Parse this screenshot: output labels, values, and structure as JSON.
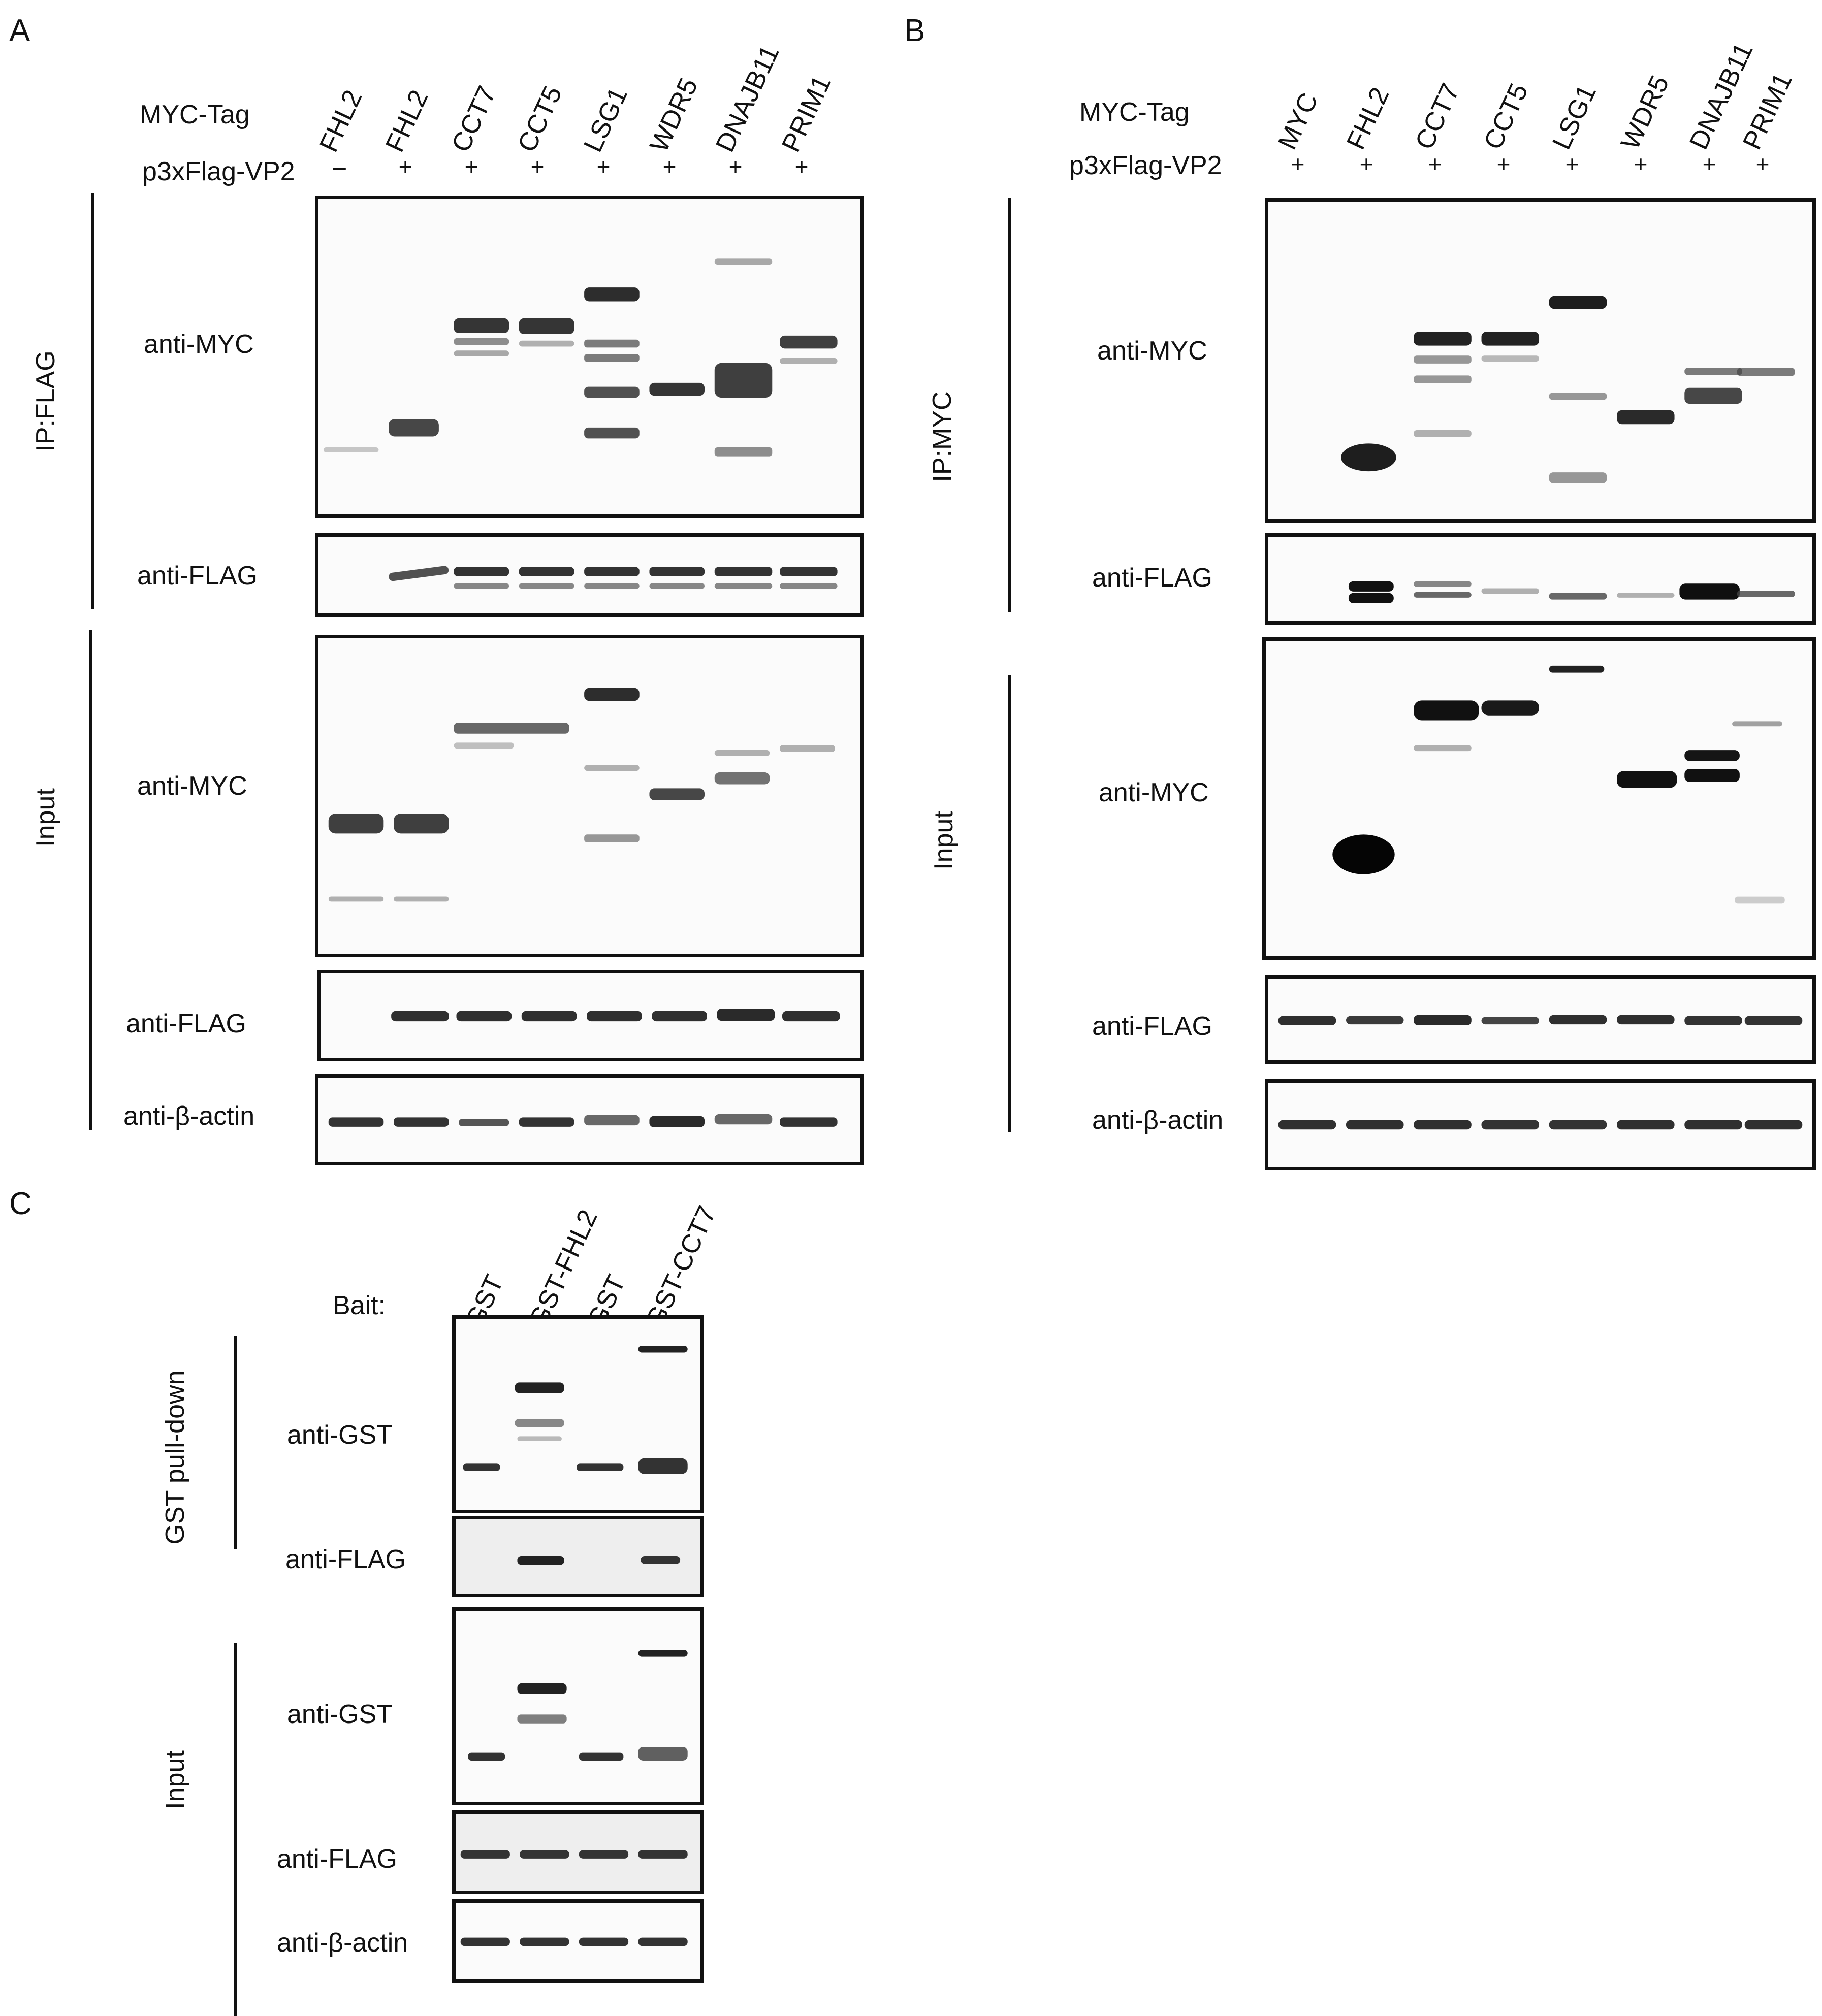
{
  "figure": {
    "panel_a": {
      "letter": "A",
      "row_labels": {
        "tag": "MYC-Tag",
        "vp2": "p3xFlag-VP2"
      },
      "lanes": [
        "FHL2",
        "FHL2",
        "CCT7",
        "CCT5",
        "LSG1",
        "WDR5",
        "DNAJB11",
        "PRIM1"
      ],
      "signs": [
        "–",
        "+",
        "+",
        "+",
        "+",
        "+",
        "+",
        "+"
      ],
      "groups": {
        "ip": "IP:FLAG",
        "input": "Input"
      },
      "blots": [
        "anti-MYC",
        "anti-FLAG",
        "anti-MYC",
        "anti-FLAG",
        "anti-β-actin"
      ]
    },
    "panel_b": {
      "letter": "B",
      "row_labels": {
        "tag": "MYC-Tag",
        "vp2": "p3xFlag-VP2"
      },
      "lanes": [
        "MYC",
        "FHL2",
        "CCT7",
        "CCT5",
        "LSG1",
        "WDR5",
        "DNAJB11",
        "PRIM1"
      ],
      "signs": [
        "+",
        "+",
        "+",
        "+",
        "+",
        "+",
        "+",
        "+"
      ],
      "groups": {
        "ip": "IP:MYC",
        "input": "Input"
      },
      "blots": [
        "anti-MYC",
        "anti-FLAG",
        "anti-MYC",
        "anti-FLAG",
        "anti-β-actin"
      ]
    },
    "panel_c": {
      "letter": "C",
      "bait_label": "Bait:",
      "lanes": [
        "GST",
        "GST-FHL2",
        "GST",
        "GST-CCT7"
      ],
      "groups": {
        "pulldown": "GST pull-down",
        "input": "Input"
      },
      "blots": [
        "anti-GST",
        "anti-FLAG",
        "anti-GST",
        "anti-FLAG",
        "anti-β-actin"
      ]
    }
  }
}
